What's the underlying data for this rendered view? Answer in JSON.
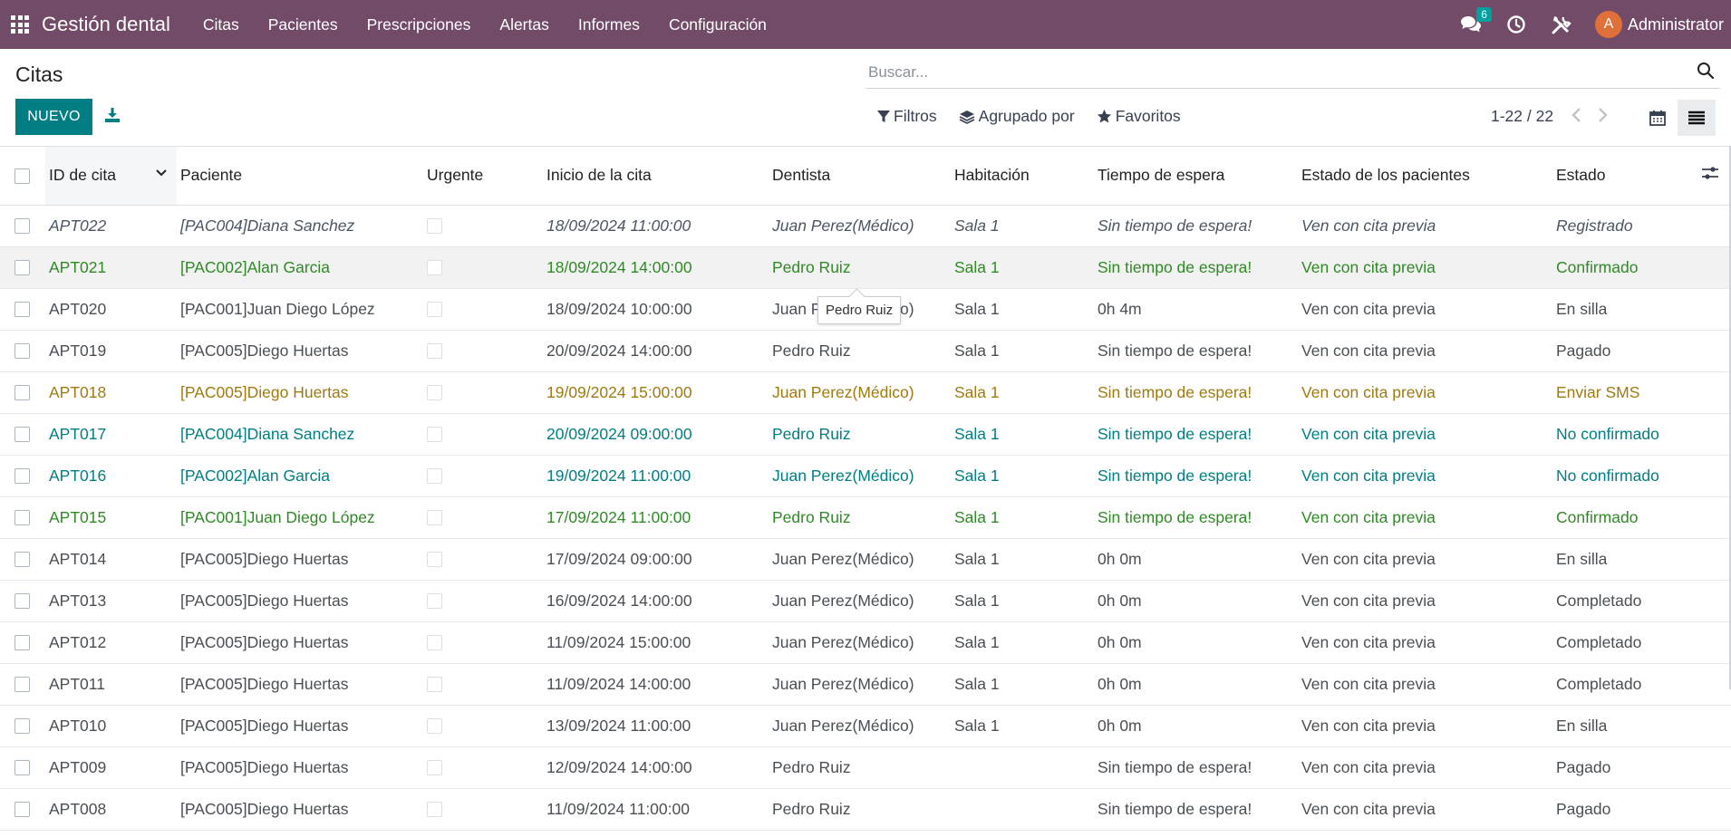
{
  "navbar": {
    "brand": "Gestión dental",
    "menu": [
      "Citas",
      "Pacientes",
      "Prescripciones",
      "Alertas",
      "Informes",
      "Configuración"
    ],
    "chat_count": "6",
    "avatar_letter": "A",
    "user": "Administrator"
  },
  "control": {
    "title": "Citas",
    "new_label": "NUEVO",
    "search_placeholder": "Buscar...",
    "filters_label": "Filtros",
    "groupby_label": "Agrupado por",
    "favorites_label": "Favoritos",
    "pager": "1-22 / 22"
  },
  "table": {
    "columns": [
      "ID de cita",
      "Paciente",
      "Urgente",
      "Inicio de la cita",
      "Dentista",
      "Habitación",
      "Tiempo de espera",
      "Estado de los pacientes",
      "Estado"
    ],
    "rows": [
      {
        "style": "muted",
        "id": "APT022",
        "patient": "[PAC004]Diana Sanchez",
        "start": "18/09/2024 11:00:00",
        "dentist": "Juan Perez(Médico)",
        "room": "Sala 1",
        "wait": "Sin tiempo de espera!",
        "patient_state": "Ven con cita previa",
        "state": "Registrado"
      },
      {
        "style": "green hover",
        "id": "APT021",
        "patient": "[PAC002]Alan Garcia",
        "start": "18/09/2024 14:00:00",
        "dentist": "Pedro Ruiz",
        "room": "Sala 1",
        "wait": "Sin tiempo de espera!",
        "patient_state": "Ven con cita previa",
        "state": "Confirmado"
      },
      {
        "style": "normal",
        "id": "APT020",
        "patient": "[PAC001]Juan Diego López",
        "start": "18/09/2024 10:00:00",
        "dentist": "Juan Perez(Médico)",
        "room": "Sala 1",
        "wait": "0h 4m",
        "patient_state": "Ven con cita previa",
        "state": "En silla"
      },
      {
        "style": "normal",
        "id": "APT019",
        "patient": "[PAC005]Diego Huertas",
        "start": "20/09/2024 14:00:00",
        "dentist": "Pedro Ruiz",
        "room": "Sala 1",
        "wait": "Sin tiempo de espera!",
        "patient_state": "Ven con cita previa",
        "state": "Pagado"
      },
      {
        "style": "gold",
        "id": "APT018",
        "patient": "[PAC005]Diego Huertas",
        "start": "19/09/2024 15:00:00",
        "dentist": "Juan Perez(Médico)",
        "room": "Sala 1",
        "wait": "Sin tiempo de espera!",
        "patient_state": "Ven con cita previa",
        "state": "Enviar SMS"
      },
      {
        "style": "teal",
        "id": "APT017",
        "patient": "[PAC004]Diana Sanchez",
        "start": "20/09/2024 09:00:00",
        "dentist": "Pedro Ruiz",
        "room": "Sala 1",
        "wait": "Sin tiempo de espera!",
        "patient_state": "Ven con cita previa",
        "state": "No confirmado"
      },
      {
        "style": "teal",
        "id": "APT016",
        "patient": "[PAC002]Alan Garcia",
        "start": "19/09/2024 11:00:00",
        "dentist": "Juan Perez(Médico)",
        "room": "Sala 1",
        "wait": "Sin tiempo de espera!",
        "patient_state": "Ven con cita previa",
        "state": "No confirmado"
      },
      {
        "style": "green",
        "id": "APT015",
        "patient": "[PAC001]Juan Diego López",
        "start": "17/09/2024 11:00:00",
        "dentist": "Pedro Ruiz",
        "room": "Sala 1",
        "wait": "Sin tiempo de espera!",
        "patient_state": "Ven con cita previa",
        "state": "Confirmado"
      },
      {
        "style": "normal",
        "id": "APT014",
        "patient": "[PAC005]Diego Huertas",
        "start": "17/09/2024 09:00:00",
        "dentist": "Juan Perez(Médico)",
        "room": "Sala 1",
        "wait": "0h 0m",
        "patient_state": "Ven con cita previa",
        "state": "En silla"
      },
      {
        "style": "normal",
        "id": "APT013",
        "patient": "[PAC005]Diego Huertas",
        "start": "16/09/2024 14:00:00",
        "dentist": "Juan Perez(Médico)",
        "room": "Sala 1",
        "wait": "0h 0m",
        "patient_state": "Ven con cita previa",
        "state": "Completado"
      },
      {
        "style": "normal",
        "id": "APT012",
        "patient": "[PAC005]Diego Huertas",
        "start": "11/09/2024 15:00:00",
        "dentist": "Juan Perez(Médico)",
        "room": "Sala 1",
        "wait": "0h 0m",
        "patient_state": "Ven con cita previa",
        "state": "Completado"
      },
      {
        "style": "normal",
        "id": "APT011",
        "patient": "[PAC005]Diego Huertas",
        "start": "11/09/2024 14:00:00",
        "dentist": "Juan Perez(Médico)",
        "room": "Sala 1",
        "wait": "0h 0m",
        "patient_state": "Ven con cita previa",
        "state": "Completado"
      },
      {
        "style": "normal",
        "id": "APT010",
        "patient": "[PAC005]Diego Huertas",
        "start": "13/09/2024 11:00:00",
        "dentist": "Juan Perez(Médico)",
        "room": "Sala 1",
        "wait": "0h 0m",
        "patient_state": "Ven con cita previa",
        "state": "En silla"
      },
      {
        "style": "normal",
        "id": "APT009",
        "patient": "[PAC005]Diego Huertas",
        "start": "12/09/2024 14:00:00",
        "dentist": "Pedro Ruiz",
        "room": "",
        "wait": "Sin tiempo de espera!",
        "patient_state": "Ven con cita previa",
        "state": "Pagado"
      },
      {
        "style": "normal",
        "id": "APT008",
        "patient": "[PAC005]Diego Huertas",
        "start": "11/09/2024 11:00:00",
        "dentist": "Pedro Ruiz",
        "room": "",
        "wait": "Sin tiempo de espera!",
        "patient_state": "Ven con cita previa",
        "state": "Pagado"
      }
    ]
  },
  "tooltip": "Pedro Ruiz"
}
